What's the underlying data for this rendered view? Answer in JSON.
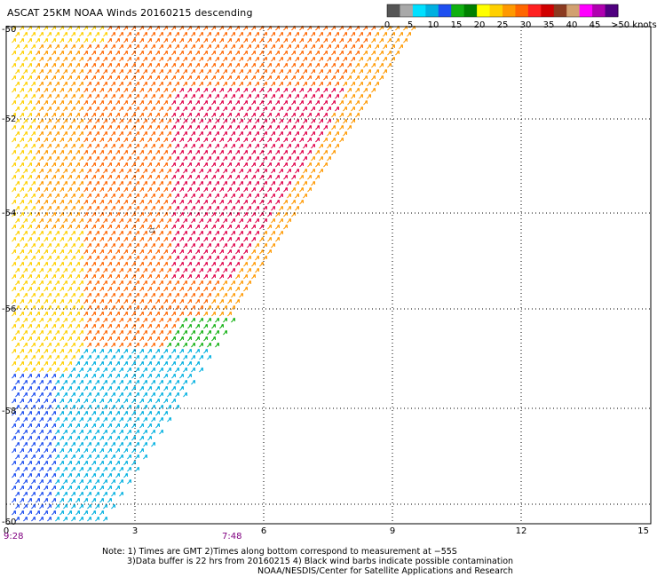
{
  "header": {
    "title": "ASCAT 25KM NOAA Winds 20160215 descending"
  },
  "legend": {
    "colors": [
      "#555555",
      "#a9a9a9",
      "#00e0ff",
      "#00b0e0",
      "#1e4ff0",
      "#10b010",
      "#008000",
      "#ffff00",
      "#ffd000",
      "#ff9900",
      "#ff6600",
      "#ff2020",
      "#d00000",
      "#8b3a20",
      "#d2a070",
      "#ff00ff",
      "#b000b0",
      "#500080"
    ],
    "labels": [
      "0",
      "5",
      "10",
      "15",
      "20",
      "25",
      "30",
      "35",
      "40",
      "45",
      ">50 knots"
    ]
  },
  "axes": {
    "y_labels": [
      "-50",
      "-52",
      "-54",
      "-56",
      "-58",
      "-60"
    ],
    "x_labels": [
      "0",
      "3",
      "6",
      "9",
      "12",
      "15"
    ]
  },
  "times": {
    "left": "9:28",
    "mid": "7:48"
  },
  "notes": {
    "line1": "Note: 1) Times are GMT 2)Times along bottom correspond to measurement at −55S",
    "line2": "3)Data buffer is 22 hrs from 20160215 4) Black wind barbs indicate possible contamination",
    "line3": "NOAA/NESDIS/Center for Satellite Applications and Research"
  },
  "map_marker": "ದ"
}
